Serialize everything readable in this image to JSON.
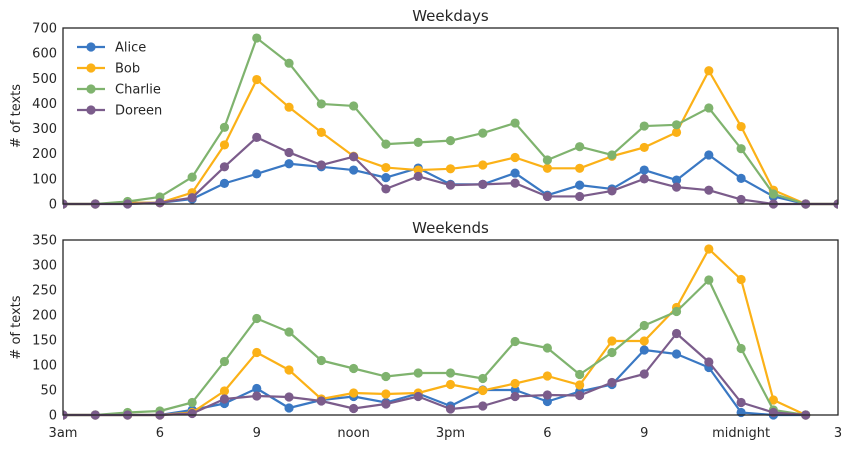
{
  "chart_data": [
    {
      "type": "line",
      "title": "Weekdays",
      "ylabel": "# of texts",
      "ylim": [
        0,
        700
      ],
      "yticks": [
        "0",
        "100",
        "200",
        "300",
        "400",
        "500",
        "600",
        "700"
      ],
      "xlim": [
        3,
        27
      ],
      "legend": {
        "placement": "top-left"
      },
      "series": [
        {
          "name": "Alice",
          "color": "#3a78c3",
          "x": [
            3,
            4,
            5,
            6,
            7,
            8,
            9,
            10,
            11,
            12,
            13,
            14,
            15,
            16,
            17,
            18,
            19,
            20,
            21,
            22,
            23,
            24,
            25,
            26,
            27
          ],
          "values": [
            0,
            0,
            5,
            5,
            20,
            82,
            120,
            160,
            148,
            135,
            105,
            143,
            78,
            78,
            123,
            35,
            75,
            60,
            135,
            95,
            195,
            102,
            30,
            0,
            0
          ]
        },
        {
          "name": "Bob",
          "color": "#fbb117",
          "x": [
            3,
            4,
            5,
            6,
            7,
            8,
            9,
            10,
            11,
            12,
            13,
            14,
            15,
            16,
            17,
            18,
            19,
            20,
            21,
            22,
            23,
            24,
            25,
            26,
            27
          ],
          "values": [
            0,
            0,
            5,
            5,
            45,
            235,
            495,
            385,
            285,
            190,
            145,
            135,
            140,
            155,
            185,
            142,
            142,
            190,
            225,
            285,
            530,
            308,
            55,
            0,
            0
          ]
        },
        {
          "name": "Charlie",
          "color": "#7fb36e",
          "x": [
            3,
            4,
            5,
            6,
            7,
            8,
            9,
            10,
            11,
            12,
            13,
            14,
            15,
            16,
            17,
            18,
            19,
            20,
            21,
            22,
            23,
            24,
            25,
            26,
            27
          ],
          "values": [
            0,
            0,
            10,
            28,
            107,
            305,
            660,
            560,
            398,
            390,
            238,
            245,
            252,
            282,
            322,
            175,
            228,
            195,
            310,
            315,
            382,
            220,
            40,
            0,
            0
          ]
        },
        {
          "name": "Doreen",
          "color": "#7b5c8b",
          "x": [
            3,
            4,
            5,
            6,
            7,
            8,
            9,
            10,
            11,
            12,
            13,
            14,
            15,
            16,
            17,
            18,
            19,
            20,
            21,
            22,
            23,
            24,
            25,
            26,
            27
          ],
          "values": [
            0,
            0,
            0,
            5,
            25,
            148,
            265,
            205,
            155,
            188,
            60,
            110,
            75,
            78,
            83,
            30,
            30,
            52,
            100,
            67,
            55,
            18,
            0,
            0,
            0
          ]
        }
      ]
    },
    {
      "type": "line",
      "title": "Weekends",
      "ylabel": "# of texts",
      "ylim": [
        0,
        350
      ],
      "yticks": [
        "0",
        "50",
        "100",
        "150",
        "200",
        "250",
        "300",
        "350"
      ],
      "xlim": [
        3,
        27
      ],
      "xticks": [
        {
          "x": 3,
          "label": "3am"
        },
        {
          "x": 6,
          "label": "6"
        },
        {
          "x": 9,
          "label": "9"
        },
        {
          "x": 12,
          "label": "noon"
        },
        {
          "x": 15,
          "label": "3pm"
        },
        {
          "x": 18,
          "label": "6"
        },
        {
          "x": 21,
          "label": "9"
        },
        {
          "x": 24,
          "label": "midnight"
        },
        {
          "x": 27,
          "label": "3"
        }
      ],
      "series": [
        {
          "name": "Alice",
          "color": "#3a78c3",
          "x": [
            3,
            4,
            5,
            6,
            7,
            8,
            9,
            10,
            11,
            12,
            13,
            14,
            15,
            16,
            17,
            18,
            19,
            20,
            21,
            22,
            23,
            24,
            25,
            26
          ],
          "values": [
            0,
            0,
            0,
            0,
            10,
            23,
            53,
            14,
            30,
            37,
            25,
            43,
            18,
            50,
            50,
            27,
            47,
            61,
            130,
            122,
            95,
            5,
            0,
            0
          ]
        },
        {
          "name": "Bob",
          "color": "#fbb117",
          "x": [
            3,
            4,
            5,
            6,
            7,
            8,
            9,
            10,
            11,
            12,
            13,
            14,
            15,
            16,
            17,
            18,
            19,
            20,
            21,
            22,
            23,
            24,
            25,
            26
          ],
          "values": [
            0,
            0,
            0,
            0,
            5,
            48,
            125,
            90,
            32,
            44,
            42,
            44,
            61,
            49,
            63,
            78,
            60,
            148,
            148,
            215,
            332,
            271,
            30,
            0
          ]
        },
        {
          "name": "Charlie",
          "color": "#7fb36e",
          "x": [
            3,
            4,
            5,
            6,
            7,
            8,
            9,
            10,
            11,
            12,
            13,
            14,
            15,
            16,
            17,
            18,
            19,
            20,
            21,
            22,
            23,
            24,
            25,
            26
          ],
          "values": [
            0,
            0,
            5,
            8,
            25,
            107,
            193,
            166,
            109,
            93,
            77,
            84,
            84,
            73,
            147,
            134,
            81,
            125,
            179,
            207,
            270,
            133,
            10,
            0
          ]
        },
        {
          "name": "Doreen",
          "color": "#7b5c8b",
          "x": [
            3,
            4,
            5,
            6,
            7,
            8,
            9,
            10,
            11,
            12,
            13,
            14,
            15,
            16,
            17,
            18,
            19,
            20,
            21,
            22,
            23,
            24,
            25,
            26
          ],
          "values": [
            0,
            0,
            0,
            0,
            3,
            32,
            38,
            36,
            28,
            13,
            22,
            37,
            12,
            18,
            37,
            40,
            39,
            65,
            82,
            163,
            106,
            25,
            5,
            0
          ]
        }
      ]
    }
  ]
}
